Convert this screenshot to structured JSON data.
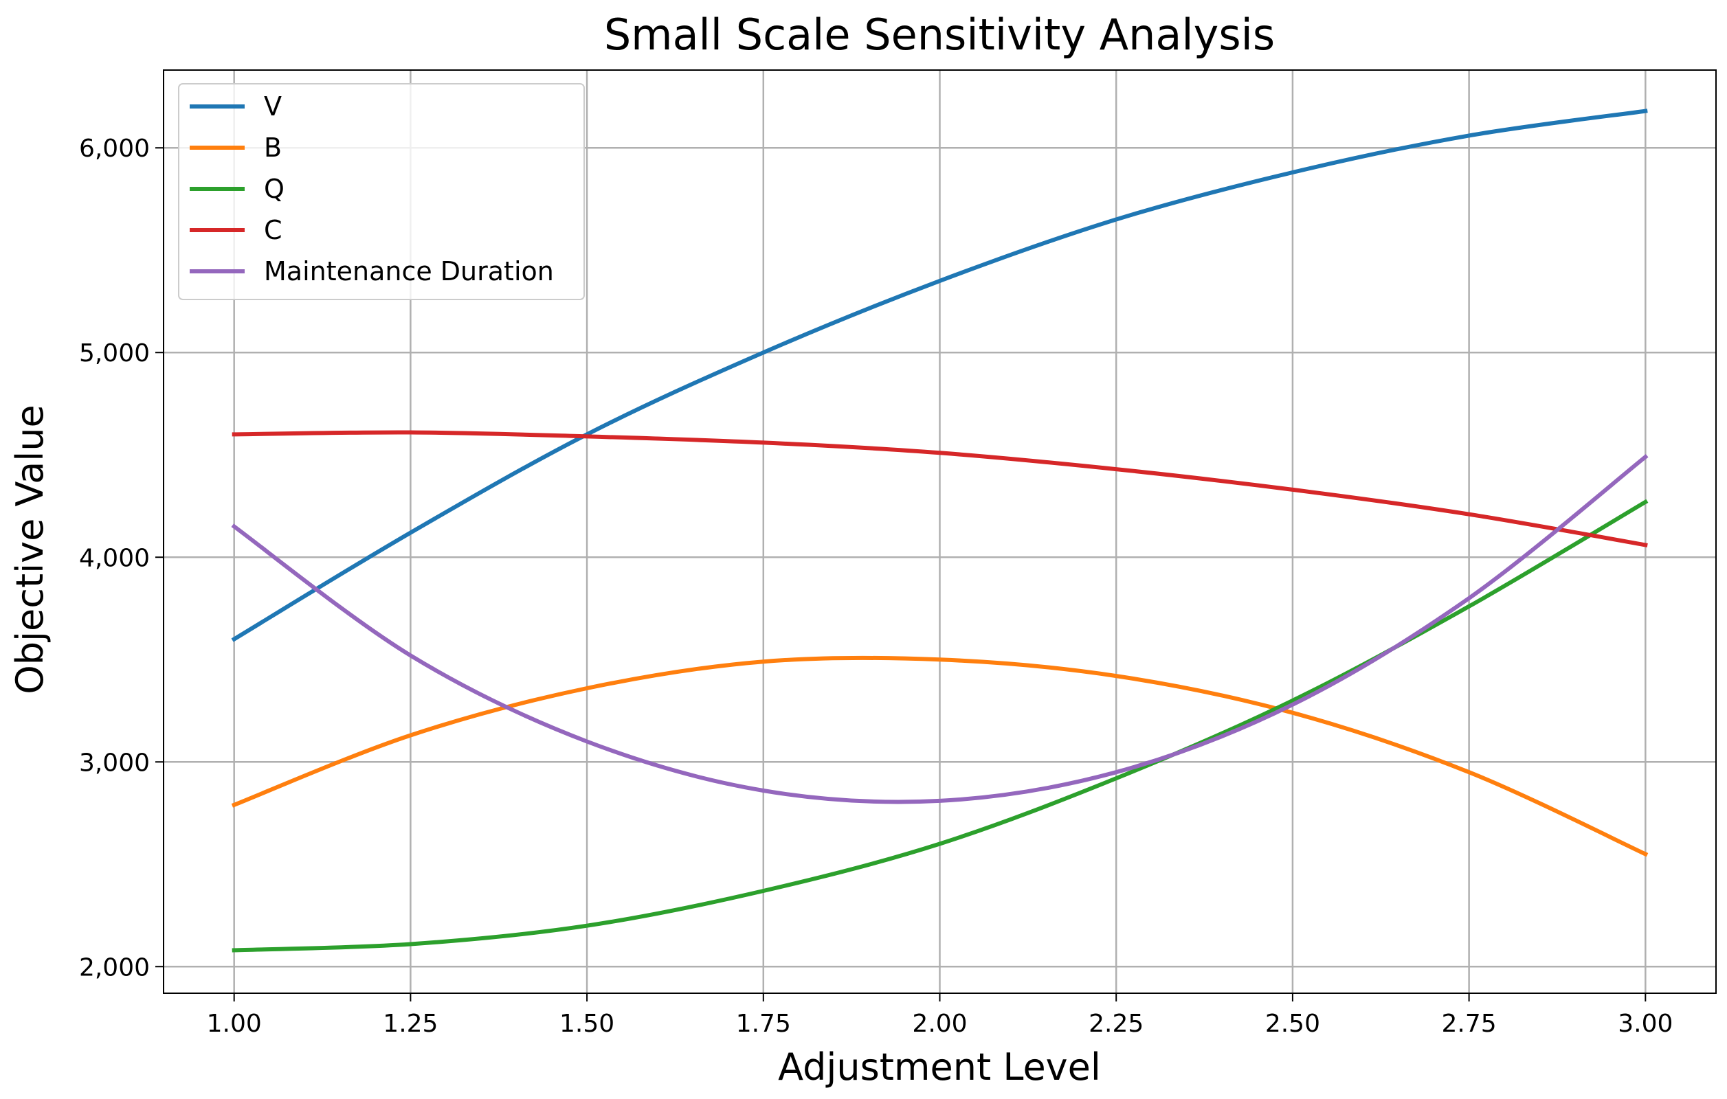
{
  "chart_data": {
    "type": "line",
    "title": "Small Scale Sensitivity Analysis",
    "xlabel": "Adjustment Level",
    "ylabel": "Objective Value",
    "xlim": [
      0.9,
      3.1
    ],
    "ylim": [
      1870,
      6380
    ],
    "x_ticks": [
      1.0,
      1.25,
      1.5,
      1.75,
      2.0,
      2.25,
      2.5,
      2.75,
      3.0
    ],
    "x_tick_labels": [
      "1.00",
      "1.25",
      "1.50",
      "1.75",
      "2.00",
      "2.25",
      "2.50",
      "2.75",
      "3.00"
    ],
    "y_ticks": [
      2000,
      3000,
      4000,
      5000,
      6000
    ],
    "y_tick_labels": [
      "2,000",
      "3,000",
      "4,000",
      "5,000",
      "6,000"
    ],
    "grid": true,
    "legend_position": "upper-left",
    "x": [
      1.0,
      1.25,
      1.5,
      1.75,
      2.0,
      2.25,
      2.5,
      2.75,
      3.0
    ],
    "series": [
      {
        "name": "V",
        "color": "#1f77b4",
        "values": [
          3600,
          4120,
          4600,
          5000,
          5350,
          5650,
          5880,
          6060,
          6180
        ]
      },
      {
        "name": "B",
        "color": "#ff7f0e",
        "values": [
          2790,
          3130,
          3360,
          3490,
          3500,
          3420,
          3240,
          2950,
          2550
        ]
      },
      {
        "name": "Q",
        "color": "#2ca02c",
        "values": [
          2080,
          2110,
          2200,
          2370,
          2600,
          2920,
          3300,
          3760,
          4270
        ]
      },
      {
        "name": "C",
        "color": "#d62728",
        "values": [
          4600,
          4610,
          4590,
          4560,
          4510,
          4430,
          4330,
          4210,
          4060
        ]
      },
      {
        "name": "Maintenance Duration",
        "color": "#9467bd",
        "values": [
          4150,
          3520,
          3100,
          2860,
          2810,
          2950,
          3280,
          3800,
          4490
        ]
      }
    ]
  }
}
